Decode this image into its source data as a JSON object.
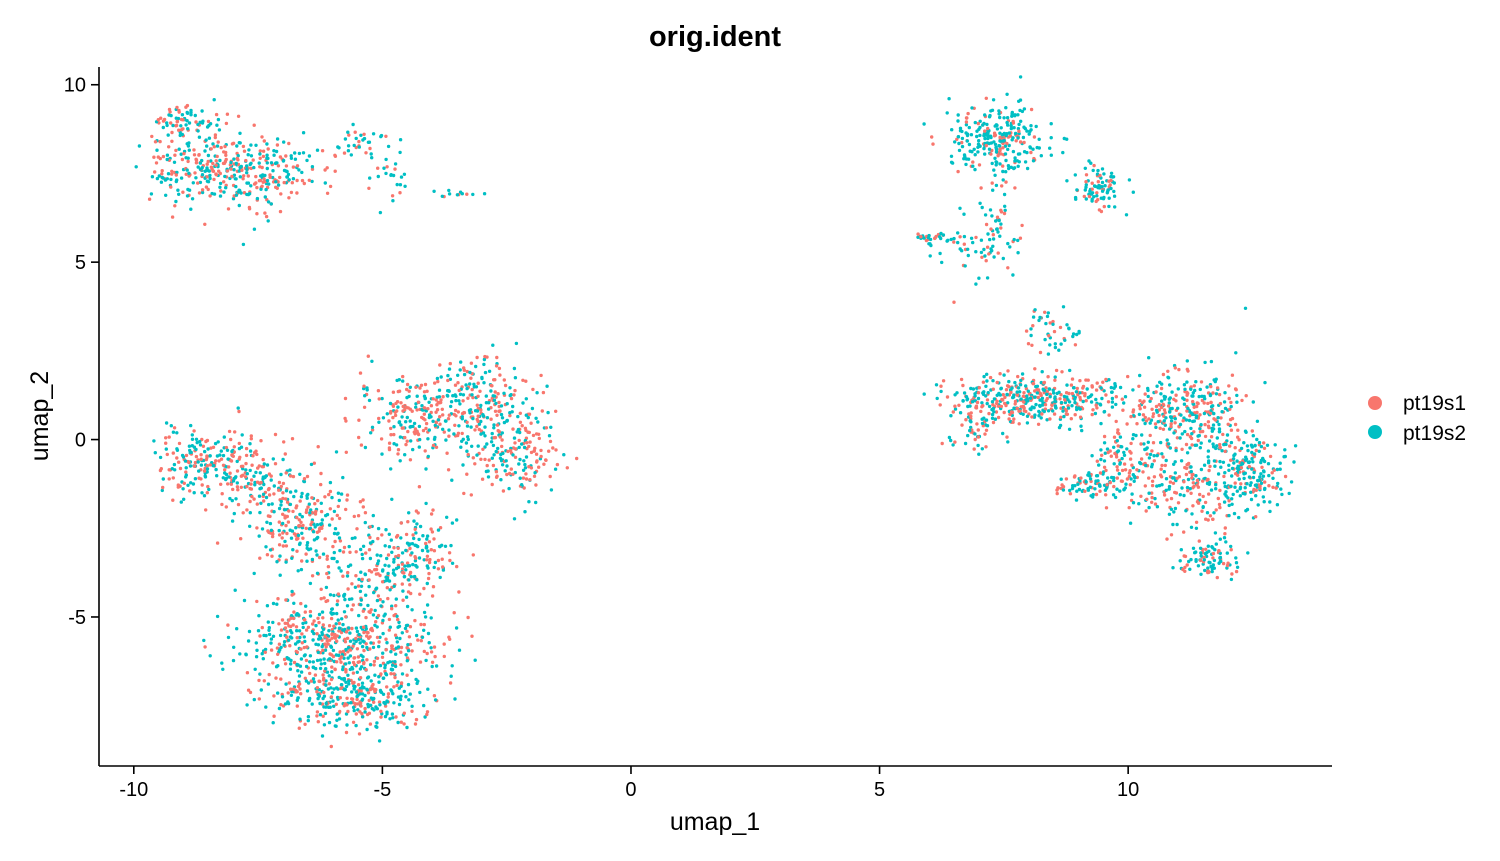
{
  "chart_data": {
    "type": "scatter",
    "title": "orig.ident",
    "xlabel": "umap_1",
    "ylabel": "umap_2",
    "xlim": [
      -10.7,
      14.1
    ],
    "ylim": [
      -9.2,
      10.5
    ],
    "x_ticks": [
      -10,
      -5,
      0,
      5,
      10
    ],
    "x_tick_labels": [
      "-10",
      "-5",
      "0",
      "5",
      "10"
    ],
    "y_ticks": [
      -5,
      0,
      5,
      10
    ],
    "y_tick_labels": [
      "-5",
      "0",
      "5",
      "10"
    ],
    "grid": false,
    "legend_position": "right",
    "series": [
      {
        "name": "pt19s1",
        "color": "#F8766D"
      },
      {
        "name": "pt19s2",
        "color": "#00BFC4"
      }
    ],
    "clusters": [
      {
        "cx": -8.6,
        "cy": 7.7,
        "sx": 0.6,
        "sy": 0.6,
        "n": 240,
        "p1": 0.45
      },
      {
        "cx": -7.4,
        "cy": 7.5,
        "sx": 0.5,
        "sy": 0.5,
        "n": 170,
        "p1": 0.45
      },
      {
        "cx": -9.0,
        "cy": 9.0,
        "sx": 0.4,
        "sy": 0.2,
        "n": 60,
        "p1": 0.5
      },
      {
        "cx": -5.6,
        "cy": 8.2,
        "sx": 0.35,
        "sy": 0.25,
        "n": 35,
        "p1": 0.35
      },
      {
        "cx": -4.9,
        "cy": 7.4,
        "sx": 0.2,
        "sy": 0.5,
        "n": 25,
        "p1": 0.3
      },
      {
        "cx": -3.6,
        "cy": 6.95,
        "sx": 0.25,
        "sy": 0.05,
        "n": 12,
        "p1": 0.2
      },
      {
        "cx": -4.3,
        "cy": 0.7,
        "sx": 0.6,
        "sy": 0.6,
        "n": 230,
        "p1": 0.5
      },
      {
        "cx": -3.0,
        "cy": 1.2,
        "sx": 0.5,
        "sy": 0.6,
        "n": 170,
        "p1": 0.5
      },
      {
        "cx": -2.4,
        "cy": -0.4,
        "sx": 0.45,
        "sy": 0.65,
        "n": 190,
        "p1": 0.5
      },
      {
        "cx": -8.6,
        "cy": -0.6,
        "sx": 0.5,
        "sy": 0.45,
        "n": 180,
        "p1": 0.5
      },
      {
        "cx": -7.6,
        "cy": -1.1,
        "sx": 0.5,
        "sy": 0.5,
        "n": 120,
        "p1": 0.5
      },
      {
        "cx": -6.6,
        "cy": -2.3,
        "sx": 0.6,
        "sy": 0.7,
        "n": 230,
        "p1": 0.45
      },
      {
        "cx": -5.2,
        "cy": -3.7,
        "sx": 0.7,
        "sy": 0.6,
        "n": 160,
        "p1": 0.45
      },
      {
        "cx": -4.3,
        "cy": -3.2,
        "sx": 0.4,
        "sy": 0.6,
        "n": 100,
        "p1": 0.35
      },
      {
        "cx": -5.8,
        "cy": -5.8,
        "sx": 0.95,
        "sy": 0.75,
        "n": 620,
        "p1": 0.4
      },
      {
        "cx": -5.6,
        "cy": -7.3,
        "sx": 0.8,
        "sy": 0.45,
        "n": 260,
        "p1": 0.4
      },
      {
        "cx": 7.4,
        "cy": 8.5,
        "sx": 0.5,
        "sy": 0.45,
        "n": 260,
        "p1": 0.3
      },
      {
        "cx": 9.4,
        "cy": 7.1,
        "sx": 0.25,
        "sy": 0.3,
        "n": 90,
        "p1": 0.3
      },
      {
        "cx": 6.1,
        "cy": 5.7,
        "sx": 0.2,
        "sy": 0.1,
        "n": 30,
        "p1": 0.3
      },
      {
        "cx": 7.0,
        "cy": 5.4,
        "sx": 0.45,
        "sy": 0.45,
        "n": 55,
        "p1": 0.3
      },
      {
        "cx": 7.3,
        "cy": 6.8,
        "sx": 0.2,
        "sy": 0.7,
        "n": 40,
        "p1": 0.3
      },
      {
        "cx": 8.5,
        "cy": 3.0,
        "sx": 0.3,
        "sy": 0.4,
        "n": 45,
        "p1": 0.3
      },
      {
        "cx": 7.8,
        "cy": 1.1,
        "sx": 0.7,
        "sy": 0.35,
        "n": 300,
        "p1": 0.45
      },
      {
        "cx": 6.9,
        "cy": 0.4,
        "sx": 0.25,
        "sy": 0.4,
        "n": 45,
        "p1": 0.3
      },
      {
        "cx": 9.2,
        "cy": 1.2,
        "sx": 0.6,
        "sy": 0.35,
        "n": 130,
        "p1": 0.5
      },
      {
        "cx": 10.8,
        "cy": 0.8,
        "sx": 0.5,
        "sy": 0.5,
        "n": 150,
        "p1": 0.5
      },
      {
        "cx": 11.5,
        "cy": 0.7,
        "sx": 0.45,
        "sy": 0.7,
        "n": 170,
        "p1": 0.45
      },
      {
        "cx": 11.3,
        "cy": -1.4,
        "sx": 0.7,
        "sy": 0.6,
        "n": 220,
        "p1": 0.45
      },
      {
        "cx": 12.5,
        "cy": -0.8,
        "sx": 0.35,
        "sy": 0.45,
        "n": 150,
        "p1": 0.3
      },
      {
        "cx": 11.6,
        "cy": -3.4,
        "sx": 0.3,
        "sy": 0.25,
        "n": 90,
        "p1": 0.35
      },
      {
        "cx": 9.3,
        "cy": -1.3,
        "sx": 0.35,
        "sy": 0.2,
        "n": 80,
        "p1": 0.35
      },
      {
        "cx": 9.9,
        "cy": -0.6,
        "sx": 0.45,
        "sy": 0.4,
        "n": 90,
        "p1": 0.5
      }
    ]
  }
}
